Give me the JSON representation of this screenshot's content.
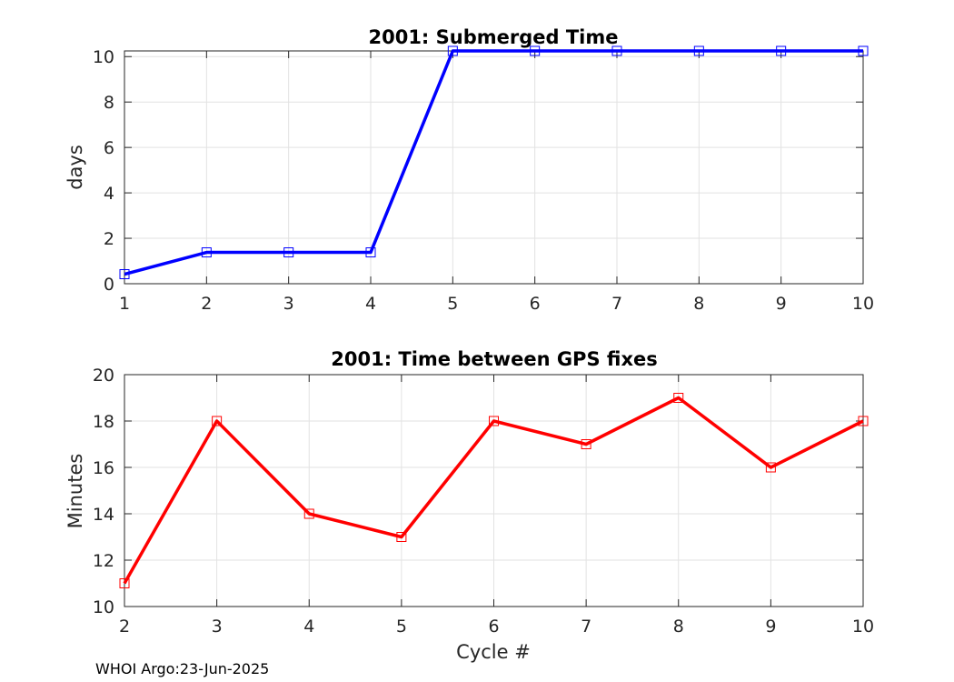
{
  "footer": "WHOI Argo:23-Jun-2025",
  "chart_data": [
    {
      "type": "line",
      "title": "2001: Submerged Time",
      "xlabel": "",
      "ylabel": "days",
      "xlim": [
        1,
        10
      ],
      "ylim": [
        0,
        10.25
      ],
      "xticks": [
        1,
        2,
        3,
        4,
        5,
        6,
        7,
        8,
        9,
        10
      ],
      "yticks": [
        0,
        2,
        4,
        6,
        8,
        10
      ],
      "grid": true,
      "marker": "square",
      "color": "#0000ff",
      "x": [
        1,
        2,
        3,
        4,
        5,
        6,
        7,
        8,
        9,
        10
      ],
      "y": [
        0.42,
        1.38,
        1.38,
        1.38,
        10.25,
        10.25,
        10.25,
        10.25,
        10.25,
        10.25
      ]
    },
    {
      "type": "line",
      "title": "2001: Time between GPS fixes",
      "xlabel": "Cycle #",
      "ylabel": "Minutes",
      "xlim": [
        2,
        10
      ],
      "ylim": [
        10,
        20
      ],
      "xticks": [
        2,
        3,
        4,
        5,
        6,
        7,
        8,
        9,
        10
      ],
      "yticks": [
        10,
        12,
        14,
        16,
        18,
        20
      ],
      "grid": true,
      "marker": "square",
      "color": "#ff0000",
      "x": [
        2,
        3,
        4,
        5,
        6,
        7,
        8,
        9,
        10
      ],
      "y": [
        11,
        18,
        14,
        13,
        18,
        17,
        19,
        16,
        18
      ]
    }
  ]
}
